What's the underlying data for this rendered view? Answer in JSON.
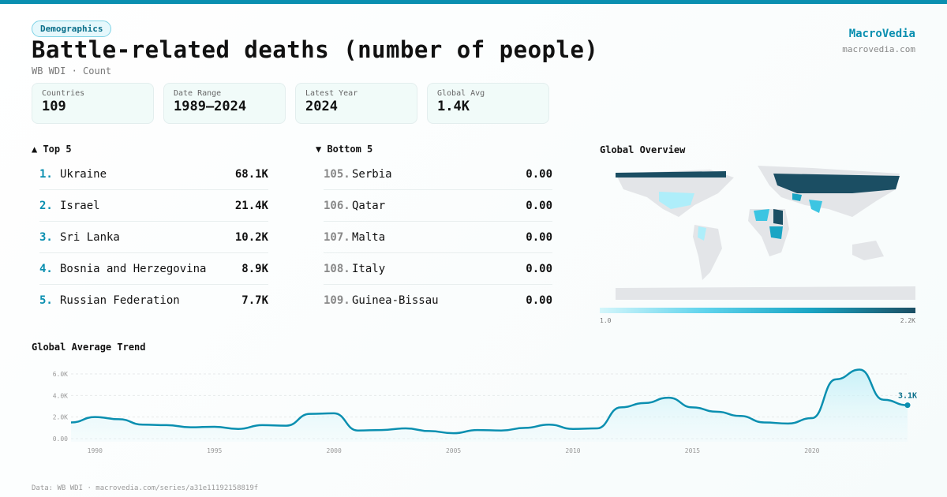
{
  "header": {
    "category": "Demographics",
    "title": "Battle-related deaths (number of people)",
    "subtitle": "WB WDI · Count",
    "brand": "MacroVedia",
    "brand_url": "macrovedia.com"
  },
  "stats": [
    {
      "label": "Countries",
      "value": "109"
    },
    {
      "label": "Date Range",
      "value": "1989–2024"
    },
    {
      "label": "Latest Year",
      "value": "2024"
    },
    {
      "label": "Global Avg",
      "value": "1.4K"
    }
  ],
  "top": {
    "title": "▲ Top 5",
    "items": [
      {
        "rank": "1.",
        "name": "Ukraine",
        "value": "68.1K"
      },
      {
        "rank": "2.",
        "name": "Israel",
        "value": "21.4K"
      },
      {
        "rank": "3.",
        "name": "Sri Lanka",
        "value": "10.2K"
      },
      {
        "rank": "4.",
        "name": "Bosnia and Herzegovina",
        "value": "8.9K"
      },
      {
        "rank": "5.",
        "name": "Russian Federation",
        "value": "7.7K"
      }
    ]
  },
  "bottom": {
    "title": "▼ Bottom 5",
    "items": [
      {
        "rank": "105.",
        "name": "Serbia",
        "value": "0.00"
      },
      {
        "rank": "106.",
        "name": "Qatar",
        "value": "0.00"
      },
      {
        "rank": "107.",
        "name": "Malta",
        "value": "0.00"
      },
      {
        "rank": "108.",
        "name": "Italy",
        "value": "0.00"
      },
      {
        "rank": "109.",
        "name": "Guinea-Bissau",
        "value": "0.00"
      }
    ]
  },
  "map": {
    "title": "Global Overview",
    "legend_min": "1.0",
    "legend_max": "2.2K"
  },
  "footer": "Data: WB WDI · macrovedia.com/series/a31e11192158819f",
  "colors": {
    "accent": "#0a8fb0"
  },
  "chart_data": {
    "type": "area",
    "title": "Global Average Trend",
    "xlabel": "",
    "ylabel": "",
    "ylim": [
      0,
      6000
    ],
    "x": [
      1989,
      1990,
      1991,
      1992,
      1993,
      1994,
      1995,
      1996,
      1997,
      1998,
      1999,
      2000,
      2001,
      2002,
      2003,
      2004,
      2005,
      2006,
      2007,
      2008,
      2009,
      2010,
      2011,
      2012,
      2013,
      2014,
      2015,
      2016,
      2017,
      2018,
      2019,
      2020,
      2021,
      2022,
      2023,
      2024
    ],
    "values": [
      1500,
      2000,
      1800,
      1300,
      1250,
      1050,
      1100,
      900,
      1250,
      1200,
      2300,
      2350,
      750,
      800,
      950,
      700,
      500,
      800,
      750,
      1000,
      1300,
      900,
      950,
      2900,
      3300,
      3800,
      2900,
      2500,
      2100,
      1500,
      1400,
      1900,
      5500,
      6400,
      3600,
      3100
    ],
    "yticks": [
      {
        "v": 0,
        "label": "0.00"
      },
      {
        "v": 2000,
        "label": "2.0K"
      },
      {
        "v": 4000,
        "label": "4.0K"
      },
      {
        "v": 6000,
        "label": "6.0K"
      }
    ],
    "xticks": [
      "1990",
      "1995",
      "2000",
      "2005",
      "2010",
      "2015",
      "2020"
    ],
    "last_label": "3.1K"
  }
}
